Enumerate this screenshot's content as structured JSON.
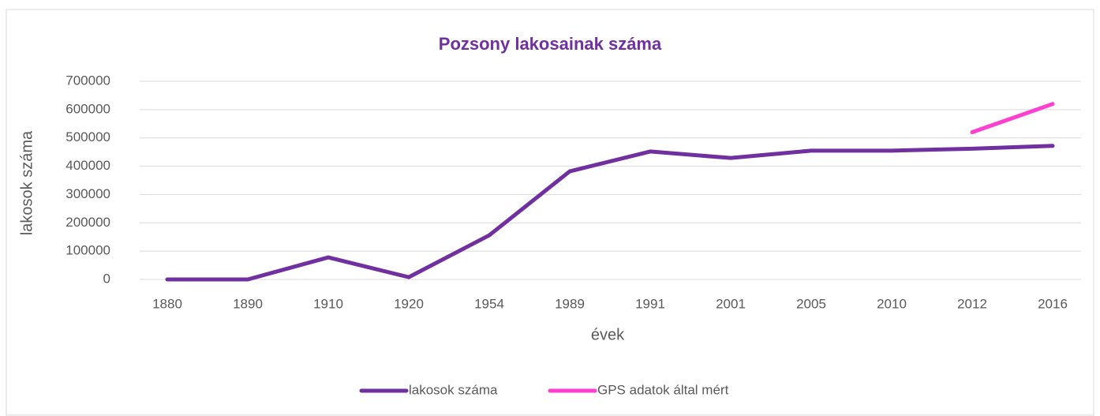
{
  "chart_data": {
    "type": "line",
    "title": "Pozsony lakosainak száma",
    "x_label": "évek",
    "y_label": "lakosok száma",
    "categories": [
      "1880",
      "1890",
      "1910",
      "1920",
      "1954",
      "1989",
      "1991",
      "2001",
      "2005",
      "2010",
      "2012",
      "2016"
    ],
    "series": [
      {
        "name": "lakosok száma",
        "color": "#7030a0",
        "values": [
          0,
          0,
          78000,
          8000,
          156000,
          382000,
          452000,
          429000,
          455000,
          455000,
          462000,
          472000
        ]
      },
      {
        "name": "GPS adatok által mért",
        "color": "#ff3fcf",
        "values": [
          null,
          null,
          null,
          null,
          null,
          null,
          null,
          null,
          null,
          null,
          520000,
          620000
        ]
      }
    ],
    "ylim": [
      0,
      700000
    ],
    "yticks": [
      0,
      100000,
      200000,
      300000,
      400000,
      500000,
      600000,
      700000
    ],
    "grid": true,
    "legend": "bottom"
  }
}
